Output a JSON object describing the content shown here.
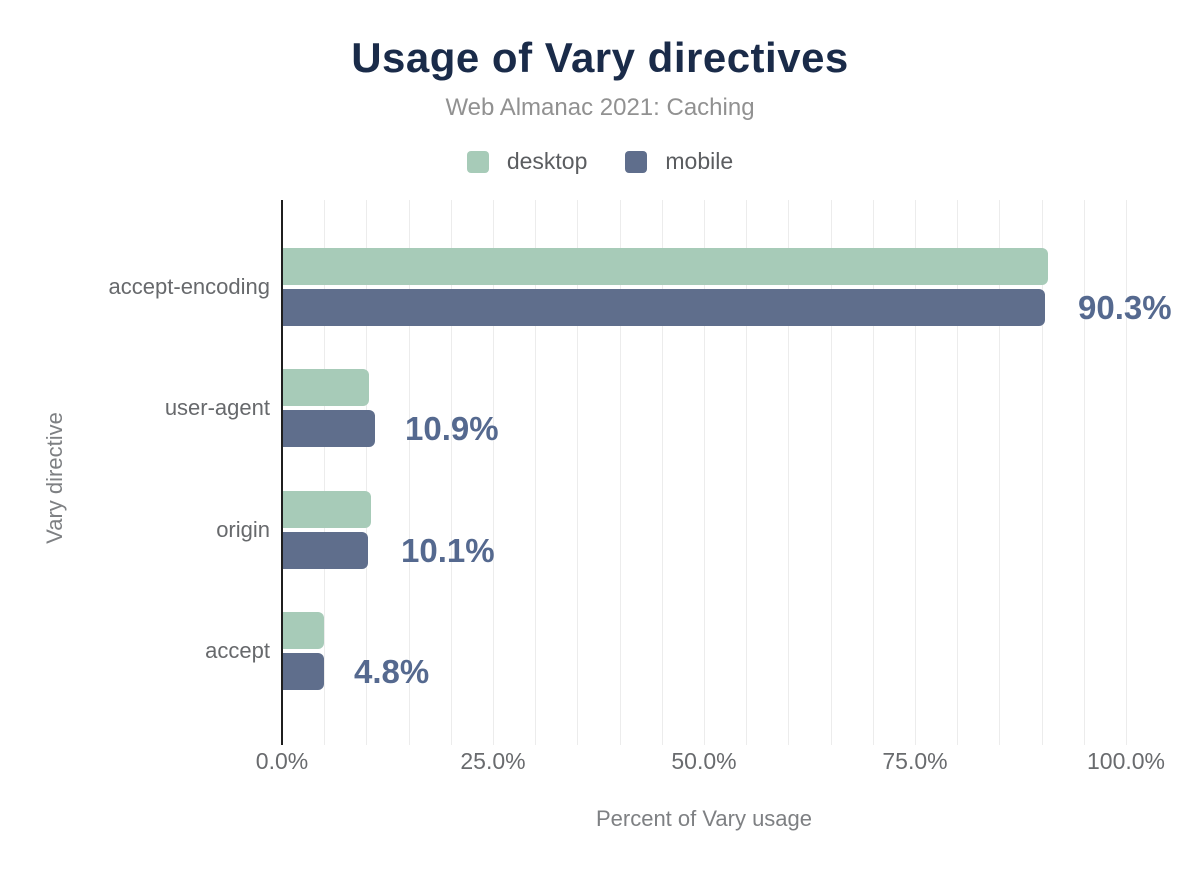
{
  "header": {
    "title": "Usage of Vary directives",
    "subtitle": "Web Almanac 2021: Caching"
  },
  "legend": {
    "items": [
      {
        "label": "desktop",
        "color": "#a7cbb8"
      },
      {
        "label": "mobile",
        "color": "#5f6e8c"
      }
    ]
  },
  "axes": {
    "xlabel": "Percent of Vary usage",
    "ylabel": "Vary directive"
  },
  "colors": {
    "title": "#1a2b49",
    "subtitle": "#919191",
    "desktop": "#a7cbb8",
    "mobile": "#5f6e8c",
    "value_label": "#55698f",
    "axis_line": "#1f1f1f",
    "gridline": "#ececec",
    "axis_text": "#696b6e"
  },
  "chart_data": {
    "type": "bar",
    "orientation": "horizontal",
    "title": "Usage of Vary directives",
    "subtitle": "Web Almanac 2021: Caching",
    "categories": [
      "accept-encoding",
      "user-agent",
      "origin",
      "accept"
    ],
    "series": [
      {
        "name": "desktop",
        "color": "#a7cbb8",
        "values": [
          90.6,
          10.2,
          10.4,
          4.9
        ]
      },
      {
        "name": "mobile",
        "color": "#5f6e8c",
        "values": [
          90.3,
          10.9,
          10.1,
          4.8
        ]
      }
    ],
    "value_labels": [
      "90.3%",
      "10.9%",
      "10.1%",
      "4.8%"
    ],
    "value_labels_series": "mobile",
    "xlabel": "Percent of Vary usage",
    "ylabel": "Vary directive",
    "xlim": [
      0,
      100
    ],
    "x_ticks": [
      "0.0%",
      "25.0%",
      "50.0%",
      "75.0%",
      "100.0%"
    ],
    "x_tick_values": [
      0,
      25,
      50,
      75,
      100
    ],
    "gridline_step_pct": 5,
    "grid": true,
    "legend_position": "top"
  }
}
